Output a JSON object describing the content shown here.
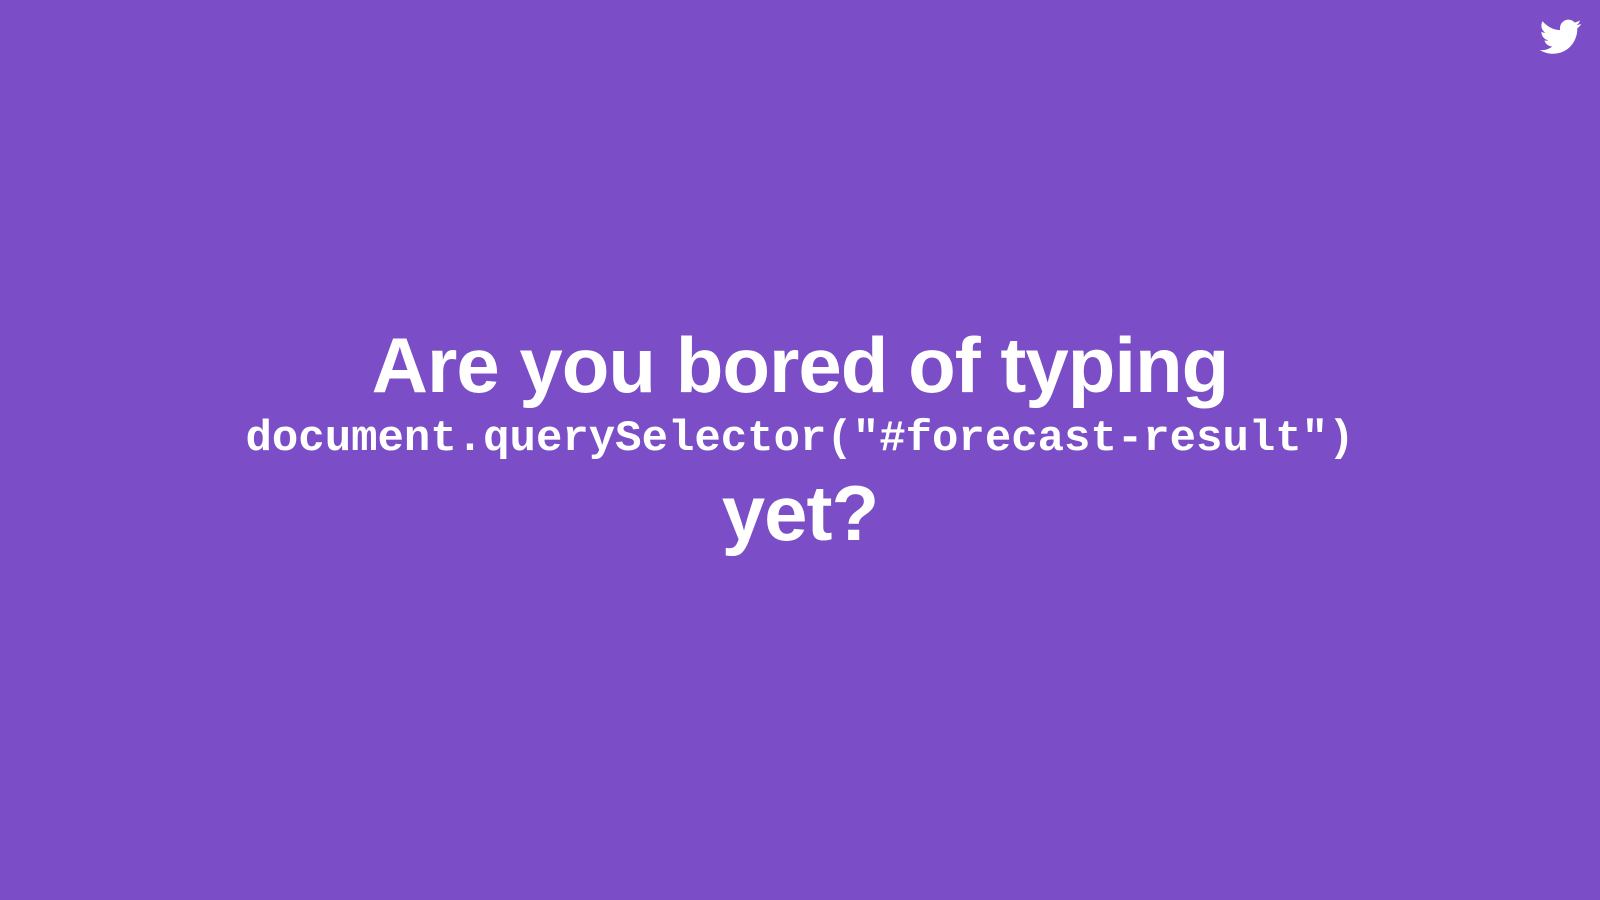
{
  "slide": {
    "heading_line1": "Are you bored of typing",
    "code_line": "document.querySelector(\"#forecast-result\")",
    "heading_line3": "yet?",
    "icon": "twitter-bird-icon",
    "colors": {
      "background": "#7b4dc6",
      "text": "#ffffff"
    }
  }
}
